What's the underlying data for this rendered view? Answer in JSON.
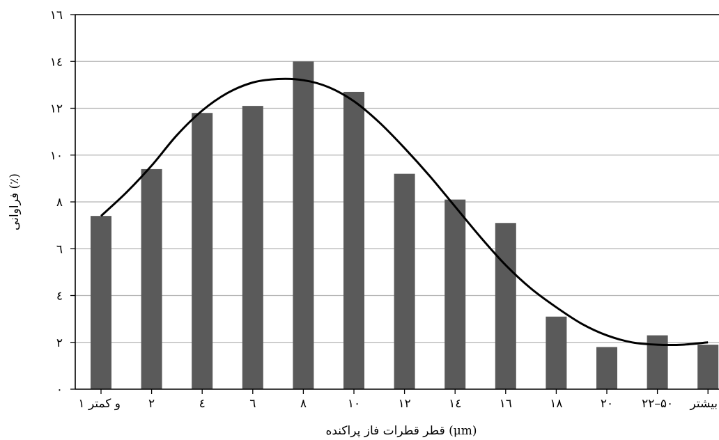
{
  "chart_data": {
    "type": "bar",
    "title": "",
    "xlabel": "قطر قطرات فاز پراکنده (μm)",
    "ylabel": "فراوانی (٪)",
    "categories": [
      "۱ و کمتر",
      "۲",
      "٤",
      "٦",
      "۸",
      "۱۰",
      "۱۲",
      "۱٤",
      "۱٦",
      "۱۸",
      "۲۰",
      "۲۲–۵۰",
      "بیشتر"
    ],
    "values": [
      7.4,
      9.4,
      11.8,
      12.1,
      14.0,
      12.7,
      9.2,
      8.1,
      7.1,
      3.1,
      1.8,
      2.3,
      1.9
    ],
    "ylim": [
      0,
      16
    ],
    "yticks": [
      0,
      2,
      4,
      6,
      8,
      10,
      12,
      14,
      16
    ],
    "ytick_labels": [
      "۰",
      "۲",
      "٤",
      "٦",
      "۸",
      "۱۰",
      "۱۲",
      "۱٤",
      "۱٦"
    ],
    "grid": true,
    "trend_line": {
      "type": "smooth",
      "x": [
        0,
        0.5,
        1,
        1.5,
        2,
        2.5,
        3,
        3.5,
        4,
        4.5,
        5,
        5.5,
        6,
        6.5,
        7,
        7.5,
        8,
        8.5,
        9,
        9.5,
        10,
        10.5,
        11,
        11.5,
        12
      ],
      "y": [
        7.4,
        8.4,
        9.55,
        10.85,
        11.9,
        12.65,
        13.1,
        13.25,
        13.2,
        12.9,
        12.3,
        11.4,
        10.3,
        9.1,
        7.8,
        6.5,
        5.3,
        4.3,
        3.5,
        2.8,
        2.3,
        2.0,
        1.9,
        1.9,
        2.0
      ]
    },
    "colors": {
      "bar": "#5a5a5a",
      "line": "#000000",
      "grid": "#b3b3b3",
      "axis": "#000000"
    }
  }
}
